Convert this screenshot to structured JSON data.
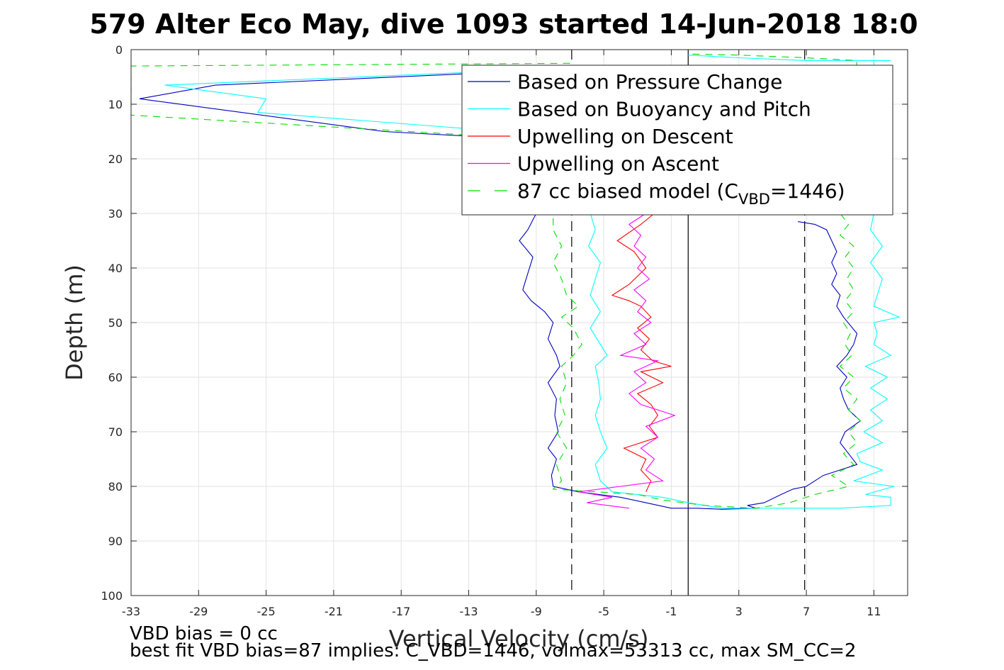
{
  "chart_data": {
    "type": "line",
    "title": "579 Alter Eco May, dive 1093 started 14-Jun-2018 18:0",
    "xlabel": "Vertical Velocity (cm/s)",
    "ylabel": "Depth (m)",
    "xlim": [
      -33,
      13
    ],
    "ylim": [
      0,
      100
    ],
    "y_reversed": true,
    "xticks": [
      -33,
      -29,
      -25,
      -21,
      -17,
      -13,
      -9,
      -5,
      -1,
      3,
      7,
      11
    ],
    "yticks": [
      0,
      10,
      20,
      30,
      40,
      50,
      60,
      70,
      80,
      90,
      100
    ],
    "grid": true,
    "legend_position": "top-right",
    "reference_lines": [
      {
        "x": 0,
        "style": "solid",
        "color": "#000000"
      },
      {
        "x": -6.9,
        "style": "dashed",
        "color": "#000000"
      },
      {
        "x": 6.9,
        "style": "dashed",
        "color": "#000000"
      }
    ],
    "series": [
      {
        "name": "Based on Pressure Change",
        "color": "#0000bf",
        "dash": "solid",
        "points": [
          [
            -3,
            3
          ],
          [
            -28,
            6.5
          ],
          [
            -32.5,
            9
          ],
          [
            -18,
            15
          ],
          [
            -11,
            16.2
          ],
          [
            -9,
            30
          ],
          [
            -9.5,
            33
          ],
          [
            -10,
            35
          ],
          [
            -9.2,
            38
          ],
          [
            -9.5,
            41
          ],
          [
            -9.8,
            44
          ],
          [
            -9.3,
            46
          ],
          [
            -8.5,
            48
          ],
          [
            -8,
            50
          ],
          [
            -8.3,
            53
          ],
          [
            -7.8,
            56
          ],
          [
            -7.6,
            58
          ],
          [
            -8.3,
            61
          ],
          [
            -7.8,
            64
          ],
          [
            -7.9,
            67
          ],
          [
            -7.7,
            70
          ],
          [
            -8.3,
            73
          ],
          [
            -7.8,
            75
          ],
          [
            -8.1,
            78
          ],
          [
            -8,
            80
          ],
          [
            -6.5,
            81
          ],
          [
            -4,
            82
          ],
          [
            -2.5,
            83
          ],
          [
            -1,
            84
          ],
          [
            0.5,
            84
          ],
          [
            2,
            84.2
          ],
          [
            4,
            84
          ],
          [
            3.5,
            83.5
          ],
          [
            4.5,
            83
          ],
          [
            5.5,
            81.5
          ],
          [
            6.2,
            80.5
          ],
          [
            7,
            80
          ],
          [
            8,
            78
          ],
          [
            9,
            77
          ],
          [
            10,
            76
          ],
          [
            9.5,
            74
          ],
          [
            9,
            72
          ],
          [
            9.3,
            70
          ],
          [
            10.2,
            68
          ],
          [
            9.5,
            66
          ],
          [
            9.2,
            64
          ],
          [
            9,
            62
          ],
          [
            9.4,
            60
          ],
          [
            8.8,
            58
          ],
          [
            9.4,
            56
          ],
          [
            9.8,
            54
          ],
          [
            10,
            52
          ],
          [
            9.2,
            49
          ],
          [
            8.8,
            47
          ],
          [
            9,
            45
          ],
          [
            8.5,
            43
          ],
          [
            8.8,
            41
          ],
          [
            8.5,
            39
          ],
          [
            8.8,
            37
          ],
          [
            8.5,
            35
          ],
          [
            8.2,
            33
          ],
          [
            7.5,
            32
          ],
          [
            6.5,
            31.5
          ]
        ]
      },
      {
        "name": "Based on Buoyancy and Pitch",
        "color": "#00ffff",
        "dash": "solid",
        "points": [
          [
            -4,
            3
          ],
          [
            -31,
            6.5
          ],
          [
            -25,
            9
          ],
          [
            -25.5,
            11.5
          ],
          [
            -13,
            14.5
          ],
          [
            -5.8,
            30
          ],
          [
            -5.5,
            33
          ],
          [
            -5.9,
            36
          ],
          [
            -5.2,
            39
          ],
          [
            -5.5,
            42
          ],
          [
            -5.8,
            45
          ],
          [
            -5.2,
            48
          ],
          [
            -5.8,
            51
          ],
          [
            -5.2,
            54
          ],
          [
            -4.8,
            56
          ],
          [
            -5.5,
            58
          ],
          [
            -5.3,
            61
          ],
          [
            -5.2,
            64
          ],
          [
            -5.5,
            67
          ],
          [
            -5.2,
            70
          ],
          [
            -4.8,
            73
          ],
          [
            -5.5,
            76
          ],
          [
            -5.2,
            79
          ],
          [
            -4.5,
            81
          ],
          [
            -1.5,
            82
          ],
          [
            0,
            83
          ],
          [
            2,
            84
          ],
          [
            5,
            84
          ],
          [
            9,
            84
          ],
          [
            12,
            83.5
          ],
          [
            12,
            82
          ],
          [
            10.5,
            81.5
          ],
          [
            12.2,
            80
          ],
          [
            9.8,
            79
          ],
          [
            11.5,
            77
          ],
          [
            10.2,
            75.5
          ],
          [
            10,
            74
          ],
          [
            11.5,
            72
          ],
          [
            10.4,
            70
          ],
          [
            11.5,
            68
          ],
          [
            10.8,
            66
          ],
          [
            11.8,
            64
          ],
          [
            10.8,
            62
          ],
          [
            11.8,
            60
          ],
          [
            10.5,
            58
          ],
          [
            12,
            56
          ],
          [
            11,
            54
          ],
          [
            11.2,
            52
          ],
          [
            11,
            50
          ],
          [
            12.5,
            49
          ],
          [
            11,
            47
          ],
          [
            11.2,
            45
          ],
          [
            11.5,
            42
          ],
          [
            10.8,
            39
          ],
          [
            11.5,
            36
          ],
          [
            10.8,
            33
          ],
          [
            11,
            30
          ],
          [
            11,
            2
          ],
          [
            12,
            2
          ],
          [
            7,
            2
          ],
          [
            3,
            1.5
          ],
          [
            0,
            1
          ]
        ]
      },
      {
        "name": "Upwelling on Descent",
        "color": "#ff0000",
        "dash": "solid",
        "points": [
          [
            -2,
            30
          ],
          [
            -2.8,
            32
          ],
          [
            -4.2,
            35
          ],
          [
            -3.2,
            37
          ],
          [
            -2.5,
            40
          ],
          [
            -3.5,
            43
          ],
          [
            -4.5,
            45
          ],
          [
            -3.5,
            46
          ],
          [
            -2.8,
            47
          ],
          [
            -2.2,
            49
          ],
          [
            -3,
            51
          ],
          [
            -2.3,
            53
          ],
          [
            -2.8,
            55
          ],
          [
            -2.1,
            57
          ],
          [
            -1,
            58
          ],
          [
            -2.8,
            59
          ],
          [
            -1.5,
            61
          ],
          [
            -3,
            63
          ],
          [
            -2.2,
            65
          ],
          [
            -1.8,
            67
          ],
          [
            -2.3,
            69
          ],
          [
            -1.8,
            71
          ],
          [
            -3.8,
            73
          ],
          [
            -2.5,
            75
          ],
          [
            -2.8,
            77
          ],
          [
            -2.2,
            79
          ],
          [
            -2.5,
            81
          ]
        ]
      },
      {
        "name": "Upwelling on Ascent",
        "color": "#ff00ff",
        "dash": "solid",
        "points": [
          [
            -3.5,
            84
          ],
          [
            -6,
            83
          ],
          [
            -4.5,
            82
          ],
          [
            -6.5,
            81
          ],
          [
            -4,
            80
          ],
          [
            -1.5,
            79
          ],
          [
            -2.5,
            77
          ],
          [
            -2,
            75
          ],
          [
            -2.8,
            73
          ],
          [
            -1.8,
            71
          ],
          [
            -2.5,
            69
          ],
          [
            -0.8,
            67
          ],
          [
            -2.8,
            65
          ],
          [
            -3.5,
            63
          ],
          [
            -2.5,
            61
          ],
          [
            -3.2,
            59
          ],
          [
            -1.8,
            57
          ],
          [
            -4,
            56
          ],
          [
            -2.5,
            54
          ],
          [
            -3.2,
            52
          ],
          [
            -2.2,
            50
          ],
          [
            -3,
            48
          ],
          [
            -2.5,
            46
          ],
          [
            -3.2,
            44
          ],
          [
            -2.3,
            42
          ],
          [
            -3,
            40
          ],
          [
            -2.5,
            38
          ],
          [
            -3.2,
            36
          ],
          [
            -2.8,
            34
          ],
          [
            -3.5,
            32
          ],
          [
            -2.5,
            30
          ]
        ]
      },
      {
        "name": "87 cc biased model (C_VBD=1446)",
        "legend_prefix": "87 cc biased model (C",
        "legend_sub": "VBD",
        "legend_suffix": "=1446)",
        "color": "#00dd00",
        "dash": "dashed",
        "points": [
          [
            -7,
            2.5
          ],
          [
            -33,
            3
          ],
          [
            -33,
            12
          ],
          [
            -11,
            16
          ],
          [
            -8,
            30
          ],
          [
            -8,
            33
          ],
          [
            -7.5,
            36
          ],
          [
            -8,
            39
          ],
          [
            -7.5,
            42
          ],
          [
            -7.2,
            45
          ],
          [
            -6.5,
            47
          ],
          [
            -7.5,
            49
          ],
          [
            -6.8,
            51
          ],
          [
            -6.3,
            54
          ],
          [
            -6.8,
            56
          ],
          [
            -7.5,
            58
          ],
          [
            -7.2,
            61
          ],
          [
            -7.6,
            64
          ],
          [
            -7.3,
            67
          ],
          [
            -7.8,
            70
          ],
          [
            -7.2,
            73
          ],
          [
            -7.8,
            76
          ],
          [
            -7.5,
            79
          ],
          [
            -8,
            80.5
          ],
          [
            -3,
            81.5
          ],
          [
            -1.5,
            82.5
          ],
          [
            1,
            83.5
          ],
          [
            4,
            84
          ],
          [
            6,
            83
          ],
          [
            7.5,
            81.5
          ],
          [
            9.5,
            80
          ],
          [
            8.5,
            78
          ],
          [
            9.8,
            76
          ],
          [
            9.2,
            74
          ],
          [
            10,
            72
          ],
          [
            9.5,
            70
          ],
          [
            10.2,
            68
          ],
          [
            9.5,
            66
          ],
          [
            10,
            64
          ],
          [
            9.2,
            62
          ],
          [
            9.8,
            60
          ],
          [
            9,
            58
          ],
          [
            9.7,
            56
          ],
          [
            9.3,
            54
          ],
          [
            9.6,
            52
          ],
          [
            9.2,
            50
          ],
          [
            9.8,
            48
          ],
          [
            9.3,
            46
          ],
          [
            9.8,
            44
          ],
          [
            9.4,
            42
          ],
          [
            9.8,
            40
          ],
          [
            9.3,
            38
          ],
          [
            9.8,
            36
          ],
          [
            9,
            34
          ],
          [
            9.5,
            32
          ],
          [
            9,
            30
          ],
          [
            10,
            2
          ],
          [
            7,
            1.5
          ],
          [
            3,
            1
          ],
          [
            0,
            0.8
          ]
        ]
      }
    ]
  },
  "annotations": {
    "vbd_bias": "VBD bias = 0 cc",
    "best_fit": "best fit VBD bias=87 implies: C_VBD=1446, volmax=53313 cc, max SM_CC=2"
  }
}
